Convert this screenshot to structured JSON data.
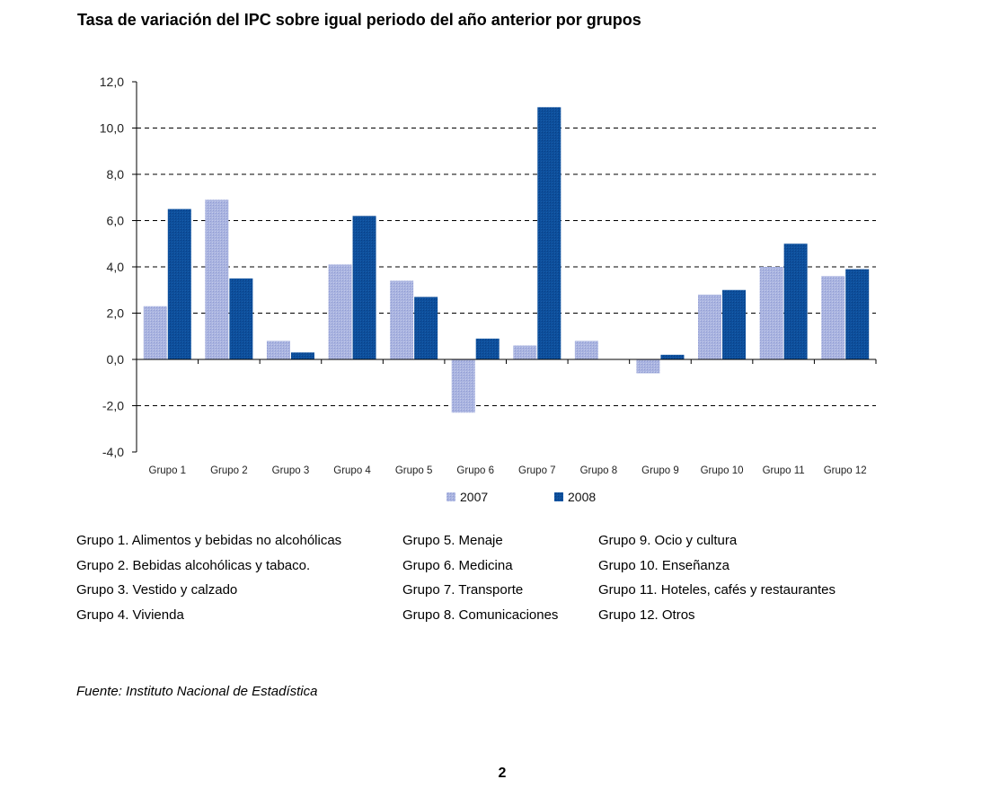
{
  "title": "Tasa de variación del IPC sobre igual periodo del año anterior por grupos",
  "colors": {
    "2007": "#a9b4e0",
    "2008": "#0c4f9b",
    "grid": "#000000"
  },
  "chart_data": {
    "type": "bar",
    "categories": [
      "Grupo 1",
      "Grupo 2",
      "Grupo 3",
      "Grupo 4",
      "Grupo 5",
      "Grupo 6",
      "Grupo 7",
      "Grupo 8",
      "Grupo 9",
      "Grupo 10",
      "Grupo 11",
      "Grupo 12"
    ],
    "series": [
      {
        "name": "2007",
        "values": [
          2.3,
          6.9,
          0.8,
          4.1,
          3.4,
          -2.3,
          0.6,
          0.8,
          -0.6,
          2.8,
          4.0,
          3.6
        ]
      },
      {
        "name": "2008",
        "values": [
          6.5,
          3.5,
          0.3,
          6.2,
          2.7,
          0.9,
          10.9,
          0.0,
          0.2,
          3.0,
          5.0,
          3.9
        ]
      }
    ],
    "ylim": [
      -4,
      12
    ],
    "yticks": [
      "12,0",
      "10,0",
      "8,0",
      "6,0",
      "4,0",
      "2,0",
      "0,0",
      "-2,0",
      "-4,0"
    ],
    "ytick_values": [
      12,
      10,
      8,
      6,
      4,
      2,
      0,
      -2,
      -4
    ],
    "grid": "dashed horizontal",
    "legend": "bottom-center"
  },
  "notes": [
    [
      "Grupo 1. Alimentos y bebidas no alcohólicas",
      "Grupo 2. Bebidas alcohólicas y  tabaco.",
      "Grupo 3. Vestido y calzado",
      "Grupo 4. Vivienda"
    ],
    [
      "Grupo 5. Menaje",
      "Grupo 6. Medicina",
      "Grupo 7. Transporte",
      "Grupo 8. Comunicaciones"
    ],
    [
      "Grupo 9. Ocio y cultura",
      "Grupo 10. Enseñanza",
      "Grupo 11. Hoteles, cafés y restaurantes",
      "Grupo 12. Otros"
    ]
  ],
  "source": "Fuente: Instituto Nacional de Estadística",
  "page_number": "2"
}
